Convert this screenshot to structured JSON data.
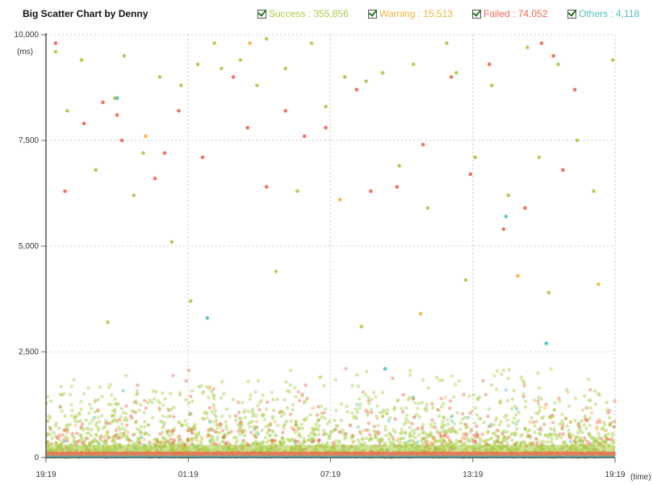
{
  "title": "Big Scatter Chart by Denny",
  "legend": [
    {
      "label": "Success",
      "count": "355,856",
      "color": "#a6cc44",
      "checked": true
    },
    {
      "label": "Warning",
      "count": "15,513",
      "color": "#f5b23d",
      "checked": true
    },
    {
      "label": "Failed",
      "count": "74,052",
      "color": "#f0664d",
      "checked": true
    },
    {
      "label": "Others",
      "count": "4,118",
      "color": "#4cbfbf",
      "checked": true
    }
  ],
  "chart_data": {
    "type": "scatter",
    "title": "Big Scatter Chart by Denny",
    "ylabel": "(ms)",
    "xlabel": "(time)",
    "ylim": [
      0,
      10000
    ],
    "y_ticks": [
      "0",
      "2,500",
      "5,000",
      "7,500",
      "10,000"
    ],
    "y_tick_values": [
      0,
      2500,
      5000,
      7500,
      10000
    ],
    "x_ticks": [
      "19:19",
      "01:19",
      "07:19",
      "13:19",
      "19:19"
    ],
    "grid": true,
    "legend_position": "top-right",
    "series": [
      {
        "name": "Success",
        "total_count": 355856,
        "color": "#a6cc44",
        "sample_points": [
          [
            0.4,
            9600
          ],
          [
            0.9,
            8200
          ],
          [
            1.5,
            9400
          ],
          [
            2.1,
            6800
          ],
          [
            2.9,
            8500
          ],
          [
            3.3,
            9500
          ],
          [
            3.7,
            6200
          ],
          [
            4.1,
            7200
          ],
          [
            4.8,
            9000
          ],
          [
            5.3,
            5100
          ],
          [
            5.7,
            8800
          ],
          [
            6.4,
            9300
          ],
          [
            7.1,
            9800
          ],
          [
            7.4,
            9200
          ],
          [
            8.2,
            9400
          ],
          [
            8.9,
            8800
          ],
          [
            9.3,
            9900
          ],
          [
            10.1,
            9200
          ],
          [
            10.6,
            6300
          ],
          [
            11.2,
            9800
          ],
          [
            11.8,
            8300
          ],
          [
            12.6,
            9000
          ],
          [
            13.5,
            8900
          ],
          [
            14.2,
            9100
          ],
          [
            14.9,
            6900
          ],
          [
            15.5,
            9300
          ],
          [
            16.1,
            5900
          ],
          [
            16.9,
            9800
          ],
          [
            17.3,
            9100
          ],
          [
            18.1,
            7100
          ],
          [
            18.8,
            8800
          ],
          [
            19.5,
            6200
          ],
          [
            20.3,
            9700
          ],
          [
            20.8,
            7100
          ],
          [
            21.6,
            9300
          ],
          [
            22.4,
            7500
          ],
          [
            23.1,
            6300
          ],
          [
            23.9,
            9400
          ],
          [
            2.6,
            3200
          ],
          [
            6.1,
            3700
          ],
          [
            9.7,
            4400
          ],
          [
            13.3,
            3100
          ],
          [
            17.7,
            4200
          ],
          [
            21.2,
            3900
          ]
        ]
      },
      {
        "name": "Warning",
        "total_count": 15513,
        "color": "#f5b23d",
        "sample_points": [
          [
            4.2,
            7600
          ],
          [
            8.6,
            9800
          ],
          [
            12.4,
            6100
          ],
          [
            15.8,
            3400
          ],
          [
            19.9,
            4300
          ],
          [
            23.3,
            4100
          ]
        ]
      },
      {
        "name": "Failed",
        "total_count": 74052,
        "color": "#f0664d",
        "sample_points": [
          [
            0.4,
            9800
          ],
          [
            0.8,
            6300
          ],
          [
            1.6,
            7900
          ],
          [
            2.4,
            8400
          ],
          [
            3.0,
            8100
          ],
          [
            3.2,
            7500
          ],
          [
            4.6,
            6600
          ],
          [
            5.0,
            7200
          ],
          [
            5.6,
            8200
          ],
          [
            6.6,
            7100
          ],
          [
            7.9,
            9000
          ],
          [
            8.5,
            7800
          ],
          [
            9.3,
            6400
          ],
          [
            10.1,
            8200
          ],
          [
            10.9,
            7600
          ],
          [
            11.8,
            7800
          ],
          [
            13.1,
            8700
          ],
          [
            13.7,
            6300
          ],
          [
            14.8,
            6400
          ],
          [
            15.9,
            7400
          ],
          [
            17.1,
            9000
          ],
          [
            17.9,
            6700
          ],
          [
            18.7,
            9300
          ],
          [
            19.3,
            5400
          ],
          [
            20.2,
            5900
          ],
          [
            20.9,
            9800
          ],
          [
            21.4,
            9500
          ],
          [
            21.8,
            6800
          ],
          [
            22.3,
            8700
          ]
        ]
      },
      {
        "name": "Others",
        "total_count": 4118,
        "color": "#4cbfbf",
        "sample_points": [
          [
            3.0,
            8500
          ],
          [
            19.4,
            5700
          ],
          [
            6.8,
            3300
          ],
          [
            14.3,
            2100
          ],
          [
            21.1,
            2700
          ]
        ]
      }
    ]
  }
}
